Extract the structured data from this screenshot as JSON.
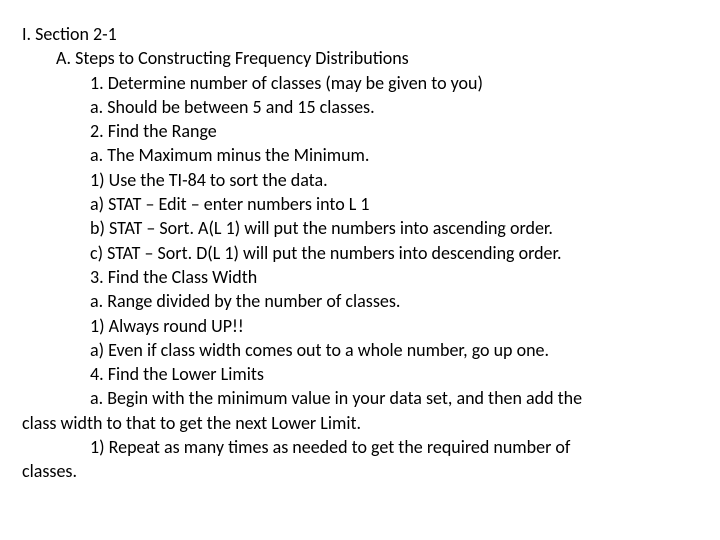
{
  "lines": {
    "l01": "I. Section 2-1",
    "l02": "A.   Steps to Constructing Frequency Distributions",
    "l03": "1.   Determine number of classes (may be given to you)",
    "l04": "a.   Should be between 5 and 15 classes.",
    "l05": "2.   Find the Range",
    "l06": "a.   The Maximum minus the Minimum.",
    "l07": "1)   Use the TI-84 to sort the data.",
    "l08": "a)   STAT – Edit – enter numbers into L 1",
    "l09": "b)   STAT – Sort. A(L 1) will put the numbers into ascending order.",
    "l10": "c)   STAT – Sort. D(L 1) will put the numbers into descending order.",
    "l11": "3.   Find the Class Width",
    "l12": "a.   Range divided by the number of classes.",
    "l13": "1)   Always round UP!!",
    "l14": "a)   Even if class width comes out to a whole number, go up one.",
    "l15": "4.   Find the Lower Limits",
    "l16": "a.   Begin with the minimum value in your data set, and then add the",
    "l17": "class width to that to get the next Lower Limit.",
    "l18": "1)   Repeat as many times as needed to get the required number of",
    "l19": "classes."
  }
}
